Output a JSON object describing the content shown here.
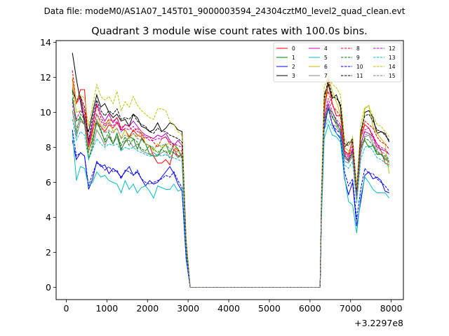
{
  "suptitle": "Data file: modeM0/AS1A07_145T01_9000003594_24304cztM0_level2_quad_clean.evt",
  "chart_data": {
    "type": "line",
    "title": "Quadrant 3 module wise count rates with 100.0s bins.",
    "xlabel": "",
    "ylabel": "",
    "x_offset_label": "+3.2297e8",
    "xlim": [
      -250,
      8300
    ],
    "ylim": [
      -0.7,
      14.1
    ],
    "xticks": [
      0,
      1000,
      2000,
      3000,
      4000,
      5000,
      6000,
      7000,
      8000
    ],
    "yticks": [
      0,
      2,
      4,
      6,
      8,
      10,
      12,
      14
    ],
    "legend_position": "top-right",
    "segments": [
      {
        "x_start": 150,
        "x_end": 2850
      },
      {
        "x_start": 6350,
        "x_end": 7950
      }
    ],
    "gap": {
      "x_start": 3050,
      "x_end": 6250,
      "value": 0
    },
    "series": [
      {
        "name": "0",
        "color": "#ff0000",
        "dash": "solid",
        "seg1": [
          11.9,
          10.5,
          11.3,
          11.3,
          8.0,
          9.0,
          9.5,
          9.2,
          8.9,
          9.3,
          9.1,
          9.4,
          9.0,
          9.0,
          8.6,
          9.0,
          8.7,
          8.6,
          8.2,
          8.1,
          7.5,
          7.1,
          7.1,
          7.3,
          7.0,
          7.9,
          7.5,
          7.6
        ],
        "seg2": [
          10.0,
          11.7,
          10.5,
          9.8,
          9.8,
          7.8,
          7.6,
          8.4,
          5.6,
          8.5,
          9.3,
          9.1,
          8.6,
          8.2,
          7.8,
          7.1,
          7.0
        ]
      },
      {
        "name": "1",
        "color": "#008000",
        "dash": "solid",
        "seg1": [
          10.8,
          9.5,
          9.7,
          9.3,
          7.8,
          8.4,
          9.4,
          9.0,
          8.3,
          8.6,
          8.2,
          8.8,
          7.9,
          8.3,
          8.6,
          8.5,
          7.9,
          8.5,
          8.2,
          7.6,
          7.5,
          7.5,
          7.9,
          8.2,
          7.6,
          8.2,
          7.9,
          7.4
        ],
        "seg2": [
          9.6,
          10.3,
          10.0,
          9.5,
          8.9,
          7.5,
          7.3,
          7.8,
          5.4,
          8.0,
          8.4,
          8.0,
          8.1,
          7.6,
          7.6,
          7.3,
          7.2
        ]
      },
      {
        "name": "2",
        "color": "#0000ff",
        "dash": "solid",
        "seg1": [
          8.4,
          7.3,
          7.7,
          7.5,
          5.6,
          6.2,
          7.2,
          6.9,
          7.0,
          6.5,
          6.8,
          6.6,
          6.3,
          6.6,
          6.9,
          6.4,
          6.6,
          6.2,
          5.8,
          6.1,
          5.9,
          6.0,
          6.3,
          6.6,
          6.9,
          6.5,
          5.9,
          5.5
        ],
        "seg2": [
          9.0,
          10.3,
          9.3,
          8.8,
          8.5,
          6.2,
          5.3,
          6.0,
          3.5,
          4.9,
          6.4,
          6.6,
          6.2,
          6.3,
          6.1,
          5.5,
          5.4
        ]
      },
      {
        "name": "3",
        "color": "#000000",
        "dash": "solid",
        "seg1": [
          13.4,
          11.9,
          10.6,
          9.4,
          8.9,
          10.0,
          11.0,
          10.3,
          10.5,
          10.0,
          9.7,
          9.9,
          9.5,
          9.6,
          9.2,
          9.9,
          9.7,
          9.2,
          9.1,
          8.9,
          9.0,
          9.4,
          8.9,
          9.1,
          9.4,
          9.3,
          9.0,
          8.9
        ],
        "seg2": [
          11.0,
          11.6,
          10.8,
          11.0,
          10.3,
          8.0,
          8.3,
          8.3,
          5.3,
          8.8,
          10.0,
          10.1,
          9.7,
          8.8,
          8.9,
          8.8,
          8.3
        ]
      },
      {
        "name": "4",
        "color": "#bf00bf",
        "dash": "solid",
        "seg1": [
          11.4,
          10.6,
          10.9,
          9.6,
          8.3,
          9.4,
          10.5,
          9.9,
          9.5,
          9.9,
          9.4,
          9.7,
          9.0,
          9.3,
          9.2,
          9.5,
          9.2,
          8.9,
          8.7,
          8.6,
          8.5,
          8.7,
          8.6,
          8.8,
          8.4,
          8.1,
          8.4,
          8.1
        ],
        "seg2": [
          9.8,
          10.5,
          9.7,
          9.4,
          9.2,
          7.6,
          7.2,
          7.9,
          5.2,
          8.2,
          8.9,
          8.8,
          8.6,
          8.0,
          7.9,
          7.8,
          7.6
        ]
      },
      {
        "name": "5",
        "color": "#00bfbf",
        "dash": "solid",
        "seg1": [
          8.9,
          6.1,
          6.9,
          6.8,
          5.8,
          6.0,
          6.6,
          6.3,
          6.4,
          6.1,
          6.0,
          5.9,
          5.4,
          6.1,
          5.6,
          5.9,
          5.4,
          5.7,
          5.8,
          5.5,
          5.1,
          5.8,
          5.7,
          5.6,
          5.6,
          5.9,
          5.5,
          5.6
        ],
        "seg2": [
          8.5,
          9.3,
          8.7,
          8.6,
          8.3,
          6.3,
          4.9,
          4.7,
          3.1,
          5.2,
          6.3,
          6.0,
          5.6,
          5.4,
          5.4,
          5.4,
          5.1
        ]
      },
      {
        "name": "6",
        "color": "#bfbf00",
        "dash": "solid",
        "seg1": [
          11.6,
          10.0,
          10.1,
          9.8,
          7.7,
          8.8,
          9.9,
          9.3,
          9.1,
          9.6,
          8.9,
          9.1,
          8.5,
          9.0,
          8.5,
          8.8,
          8.6,
          8.9,
          8.2,
          8.1,
          7.8,
          8.2,
          8.0,
          8.1,
          8.3,
          8.2,
          7.8,
          7.6
        ],
        "seg2": [
          10.2,
          12.1,
          11.2,
          10.6,
          9.9,
          8.0,
          7.8,
          7.5,
          5.3,
          8.4,
          10.2,
          10.4,
          9.2,
          8.8,
          8.5,
          8.2,
          6.5
        ]
      },
      {
        "name": "7",
        "color": "#808080",
        "dash": "solid",
        "seg1": [
          10.1,
          8.6,
          9.5,
          9.3,
          7.4,
          8.0,
          9.0,
          8.6,
          8.1,
          8.7,
          8.2,
          8.6,
          7.8,
          8.4,
          8.4,
          8.0,
          8.2,
          7.8,
          7.7,
          7.6,
          7.7,
          7.5,
          7.7,
          7.8,
          7.4,
          7.7,
          7.4,
          7.6
        ],
        "seg2": [
          9.3,
          10.3,
          9.3,
          9.2,
          8.8,
          7.2,
          7.1,
          7.5,
          5.0,
          7.6,
          8.6,
          8.7,
          8.2,
          7.8,
          7.6,
          7.4,
          7.1
        ]
      },
      {
        "name": "8",
        "color": "#ff0000",
        "dash": "dashed",
        "seg1": [
          12.4,
          10.5,
          10.9,
          10.0,
          8.2,
          9.1,
          10.4,
          9.7,
          9.3,
          9.6,
          9.5,
          9.7,
          9.1,
          9.3,
          9.2,
          8.9,
          9.1,
          8.7,
          8.5,
          8.6,
          8.3,
          8.0,
          8.5,
          8.6,
          8.2,
          8.0,
          7.8,
          7.8
        ],
        "seg2": [
          10.5,
          11.2,
          10.4,
          10.1,
          9.8,
          7.8,
          7.5,
          8.1,
          5.5,
          8.7,
          9.5,
          9.3,
          9.1,
          8.6,
          8.3,
          8.2,
          7.9
        ]
      },
      {
        "name": "9",
        "color": "#008000",
        "dash": "dashed",
        "seg1": [
          11.3,
          8.8,
          9.9,
          9.6,
          7.3,
          8.2,
          9.6,
          8.9,
          8.4,
          8.9,
          8.2,
          8.8,
          8.1,
          8.6,
          8.1,
          8.5,
          8.3,
          7.9,
          7.8,
          8.1,
          7.9,
          7.7,
          7.9,
          7.7,
          7.8,
          7.7,
          7.5,
          7.4
        ],
        "seg2": [
          9.4,
          10.2,
          9.8,
          9.3,
          9.0,
          7.4,
          7.2,
          7.7,
          5.2,
          8.1,
          8.5,
          8.4,
          8.1,
          7.7,
          7.6,
          7.5,
          7.2
        ]
      },
      {
        "name": "10",
        "color": "#0000ff",
        "dash": "dashed",
        "seg1": [
          9.0,
          7.5,
          7.7,
          7.5,
          5.8,
          6.5,
          7.1,
          7.0,
          6.7,
          6.9,
          6.6,
          6.7,
          6.2,
          6.7,
          6.6,
          6.4,
          6.7,
          6.2,
          6.0,
          5.9,
          6.0,
          6.1,
          6.2,
          6.4,
          6.3,
          6.6,
          6.1,
          5.7
        ],
        "seg2": [
          9.6,
          10.2,
          9.3,
          9.0,
          8.8,
          6.6,
          5.8,
          6.2,
          3.9,
          5.6,
          6.8,
          6.5,
          6.5,
          6.2,
          6.0,
          5.8,
          5.5
        ]
      },
      {
        "name": "11",
        "color": "#000000",
        "dash": "dashed",
        "seg1": [
          11.2,
          10.7,
          10.9,
          10.3,
          8.4,
          9.7,
          10.7,
          10.1,
          9.8,
          10.1,
          9.9,
          10.2,
          9.6,
          9.7,
          9.6,
          9.9,
          9.5,
          9.3,
          9.2,
          8.9,
          8.8,
          9.1,
          8.9,
          8.9,
          8.7,
          8.6,
          8.5,
          8.3
        ],
        "seg2": [
          10.7,
          11.9,
          10.9,
          10.8,
          10.5,
          8.2,
          8.1,
          8.5,
          5.6,
          8.9,
          9.8,
          9.9,
          9.5,
          9.0,
          8.9,
          8.7,
          8.4
        ]
      },
      {
        "name": "12",
        "color": "#bf00bf",
        "dash": "dashed",
        "seg1": [
          10.6,
          9.6,
          10.1,
          9.8,
          8.1,
          9.1,
          9.9,
          9.5,
          9.2,
          9.4,
          9.2,
          9.5,
          8.9,
          9.1,
          9.0,
          9.2,
          8.9,
          8.8,
          8.6,
          8.4,
          8.4,
          8.5,
          8.5,
          8.6,
          8.3,
          8.2,
          8.1,
          8.0
        ],
        "seg2": [
          9.7,
          10.8,
          10.0,
          9.6,
          9.3,
          7.7,
          7.4,
          7.9,
          5.1,
          8.1,
          9.0,
          9.1,
          8.7,
          8.2,
          8.0,
          7.9,
          7.6
        ]
      },
      {
        "name": "13",
        "color": "#00bfbf",
        "dash": "dashed",
        "seg1": [
          9.6,
          8.4,
          8.9,
          8.7,
          7.3,
          7.9,
          8.5,
          8.2,
          8.0,
          8.2,
          8.1,
          8.2,
          7.8,
          8.0,
          7.9,
          8.0,
          7.8,
          7.7,
          7.6,
          7.5,
          7.5,
          7.6,
          7.5,
          7.6,
          7.4,
          7.4,
          7.3,
          7.2
        ],
        "seg2": [
          9.0,
          9.6,
          9.1,
          8.8,
          8.6,
          7.0,
          6.8,
          7.2,
          4.8,
          7.3,
          8.0,
          8.1,
          7.8,
          7.4,
          7.3,
          7.1,
          6.9
        ]
      },
      {
        "name": "14",
        "color": "#bfbf00",
        "dash": "dashed",
        "seg1": [
          12.0,
          10.6,
          11.0,
          10.8,
          9.2,
          10.4,
          11.6,
          10.9,
          10.7,
          10.9,
          10.5,
          11.2,
          10.1,
          10.6,
          10.3,
          10.9,
          10.4,
          10.1,
          9.9,
          9.7,
          9.6,
          10.2,
          10.2,
          10.1,
          9.5,
          9.3,
          8.9,
          8.7
        ],
        "seg2": [
          11.4,
          12.1,
          11.6,
          11.4,
          11.0,
          8.5,
          8.1,
          8.6,
          5.7,
          9.3,
          10.3,
          10.3,
          9.8,
          9.3,
          9.2,
          8.9,
          8.6
        ]
      },
      {
        "name": "15",
        "color": "#808080",
        "dash": "dashed",
        "seg1": [
          10.4,
          9.1,
          9.6,
          9.3,
          7.7,
          8.6,
          9.5,
          9.1,
          8.8,
          9.0,
          8.8,
          9.1,
          8.5,
          8.7,
          8.6,
          8.8,
          8.5,
          8.4,
          8.2,
          8.1,
          8.0,
          8.1,
          8.1,
          8.2,
          7.9,
          7.9,
          7.7,
          7.6
        ],
        "seg2": [
          9.5,
          10.4,
          9.7,
          9.3,
          9.0,
          7.4,
          7.2,
          7.6,
          5.0,
          7.8,
          8.7,
          8.8,
          8.4,
          7.9,
          7.8,
          7.6,
          7.3
        ]
      }
    ]
  }
}
